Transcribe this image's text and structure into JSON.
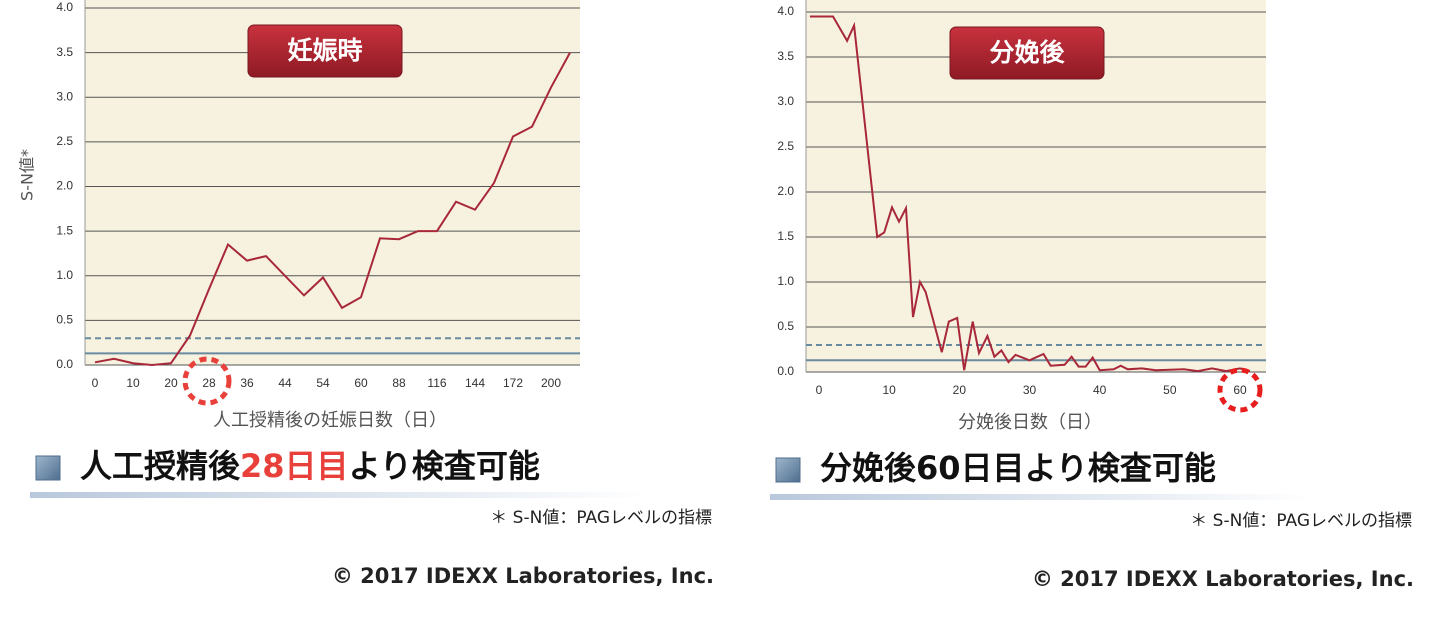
{
  "chart_data": [
    {
      "type": "line",
      "badge": "妊娠時",
      "y_label": "S-N値*",
      "x_label": "人工授精後の妊娠日数（日）",
      "categories": [
        "0",
        null,
        "10",
        null,
        "20",
        null,
        "28",
        null,
        "36",
        null,
        "44",
        null,
        "54",
        null,
        "60",
        null,
        "88",
        null,
        "116",
        null,
        "144",
        null,
        "172",
        null,
        "200",
        null
      ],
      "series": [
        {
          "color": "#a8283a",
          "values": [
            0.03,
            0.07,
            0.02,
            0.0,
            0.02,
            0.33,
            0.85,
            1.35,
            1.17,
            1.22,
            1.0,
            0.78,
            0.98,
            0.64,
            0.76,
            1.42,
            1.41,
            1.5,
            1.5,
            1.83,
            1.74,
            2.04,
            2.56,
            2.67,
            3.11,
            3.5
          ]
        }
      ],
      "ylim": [
        0,
        4
      ],
      "yticks": [
        {
          "value": 0,
          "label": "0.0"
        },
        0.5,
        {
          "value": 1,
          "label": "1.0"
        },
        1.5,
        {
          "value": 2,
          "label": "2.0"
        },
        2.5,
        {
          "value": 3,
          "label": "3.0"
        },
        3.5,
        {
          "value": 4,
          "label": "4.0"
        }
      ],
      "grid": true,
      "reference_lines": [
        {
          "value": 0.3,
          "style": "dashed",
          "color": "#6a8aa0"
        },
        {
          "value": 0.13,
          "style": "solid",
          "color": "#6a8aa0"
        }
      ]
    },
    {
      "type": "line",
      "badge": "分娩後",
      "x_label": "分娩後日数（日）",
      "x": [
        -1.3,
        2,
        4,
        5,
        8.3,
        9.3,
        10.4,
        11.4,
        12.4,
        13.4,
        14.4,
        15.2,
        17.5,
        18.5,
        19.7,
        20.7,
        21.9,
        22.8,
        24,
        25,
        26,
        27,
        28,
        30,
        32,
        33,
        35,
        36,
        37,
        38,
        39,
        40,
        42,
        43,
        44,
        46,
        48,
        52,
        54,
        56,
        58,
        60,
        61.4
      ],
      "series": [
        {
          "color": "#a8283a",
          "values": [
            3.95,
            3.95,
            3.68,
            3.85,
            1.5,
            1.55,
            1.83,
            1.67,
            1.82,
            0.61,
            1.0,
            0.89,
            0.22,
            0.56,
            0.6,
            0.02,
            0.56,
            0.21,
            0.4,
            0.17,
            0.24,
            0.11,
            0.19,
            0.13,
            0.2,
            0.07,
            0.08,
            0.17,
            0.06,
            0.06,
            0.16,
            0.02,
            0.03,
            0.07,
            0.03,
            0.04,
            0.02,
            0.03,
            0.01,
            0.04,
            0.01,
            0.04,
            0.01
          ]
        }
      ],
      "xlim": [
        -1.85,
        63.7
      ],
      "xticks": [
        0,
        10,
        20,
        30,
        40,
        50,
        60
      ],
      "ylim": [
        0,
        4
      ],
      "yticks": [
        {
          "value": 0,
          "label": "0.0"
        },
        0.5,
        {
          "value": 1,
          "label": "1.0"
        },
        1.5,
        {
          "value": 2,
          "label": "2.0"
        },
        2.5,
        {
          "value": 3,
          "label": "3.0"
        },
        3.5,
        {
          "value": 4,
          "label": "4.0"
        }
      ],
      "grid": true,
      "reference_lines": [
        {
          "value": 0.3,
          "style": "dashed",
          "color": "#6a8aa0"
        },
        {
          "value": 0.13,
          "style": "solid",
          "color": "#6a8aa0"
        }
      ]
    }
  ],
  "captions": [
    {
      "heading": [
        {
          "text": "人工授精後",
          "color": "#111111"
        },
        {
          "text": "28日目",
          "color": "#e8403a"
        },
        {
          "text": "より検査可能",
          "color": "#111111"
        }
      ],
      "note": "＊ S-N値：PAGレベルの指標",
      "copyright": "© 2017 IDEXX Laboratories, Inc."
    },
    {
      "heading": [
        {
          "text": "分娩後60日目より検査可能",
          "color": "#111111"
        }
      ],
      "note": "＊ S-N値：PAGレベルの指標",
      "copyright": "© 2017 IDEXX Laboratories, Inc."
    }
  ]
}
